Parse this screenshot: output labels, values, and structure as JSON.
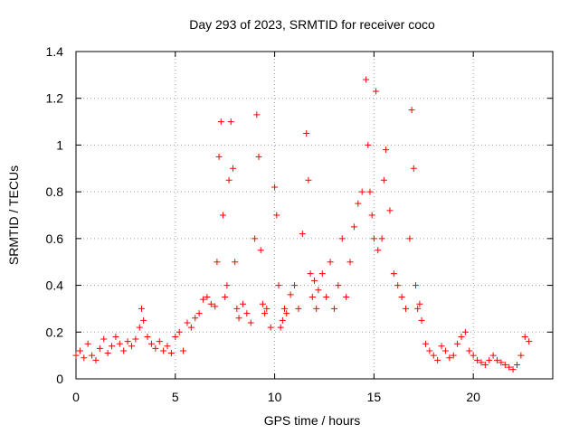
{
  "chart_data": {
    "type": "scatter",
    "title": "Day 293 of 2023, SRMTID for receiver coco",
    "xlabel": "GPS time / hours",
    "ylabel": "SRMTID / TECUs",
    "xlim": [
      0,
      24
    ],
    "ylim": [
      0,
      1.4
    ],
    "xticks": [
      0,
      5,
      10,
      15,
      20
    ],
    "xtick_labels": [
      "0",
      "5",
      "10",
      "15",
      "20"
    ],
    "yticks": [
      0,
      0.2,
      0.4,
      0.6,
      0.8,
      1,
      1.2,
      1.4
    ],
    "ytick_labels": [
      "0",
      "0.2",
      "0.4",
      "0.6",
      "0.8",
      "1",
      "1.2",
      "1.4"
    ],
    "grid": true,
    "marker": "plus",
    "color": "#ff0000",
    "series": [
      {
        "name": "SRMTID",
        "x": [
          0.0,
          0.2,
          0.4,
          0.6,
          0.8,
          1.0,
          1.2,
          1.4,
          1.6,
          1.8,
          2.0,
          2.2,
          2.4,
          2.6,
          2.8,
          3.0,
          3.2,
          3.3,
          3.4,
          3.6,
          3.8,
          4.0,
          4.2,
          4.4,
          4.6,
          4.8,
          5.0,
          5.2,
          5.4,
          5.6,
          5.8,
          6.0,
          6.2,
          6.4,
          6.6,
          6.8,
          7.0,
          7.1,
          7.2,
          7.3,
          7.4,
          7.5,
          7.6,
          7.7,
          7.8,
          7.9,
          8.0,
          8.1,
          8.2,
          8.4,
          8.6,
          8.8,
          9.0,
          9.1,
          9.2,
          9.3,
          9.4,
          9.5,
          9.6,
          9.8,
          10.0,
          10.1,
          10.2,
          10.3,
          10.4,
          10.5,
          10.6,
          10.8,
          11.0,
          11.2,
          11.4,
          11.6,
          11.7,
          11.8,
          11.9,
          12.0,
          12.1,
          12.2,
          12.4,
          12.6,
          12.8,
          13.0,
          13.2,
          13.4,
          13.6,
          13.8,
          14.0,
          14.2,
          14.4,
          14.6,
          14.7,
          14.8,
          14.9,
          15.0,
          15.1,
          15.2,
          15.4,
          15.5,
          15.6,
          15.8,
          16.0,
          16.2,
          16.4,
          16.6,
          16.8,
          16.9,
          17.0,
          17.1,
          17.2,
          17.3,
          17.4,
          17.6,
          17.8,
          18.0,
          18.2,
          18.4,
          18.6,
          18.8,
          19.0,
          19.2,
          19.4,
          19.6,
          19.8,
          20.0,
          20.2,
          20.4,
          20.6,
          20.8,
          21.0,
          21.2,
          21.4,
          21.6,
          21.8,
          22.0,
          22.2,
          22.4,
          22.6,
          22.8
        ],
        "y": [
          0.1,
          0.12,
          0.09,
          0.15,
          0.1,
          0.08,
          0.13,
          0.17,
          0.11,
          0.14,
          0.18,
          0.15,
          0.12,
          0.16,
          0.14,
          0.17,
          0.22,
          0.3,
          0.25,
          0.18,
          0.15,
          0.13,
          0.16,
          0.12,
          0.14,
          0.11,
          0.18,
          0.2,
          0.12,
          0.24,
          0.22,
          0.26,
          0.28,
          0.34,
          0.35,
          0.32,
          0.31,
          0.5,
          0.95,
          1.1,
          0.7,
          0.35,
          0.4,
          0.85,
          1.1,
          0.9,
          0.5,
          0.3,
          0.26,
          0.32,
          0.28,
          0.24,
          0.6,
          1.13,
          0.95,
          0.55,
          0.32,
          0.28,
          0.3,
          0.22,
          0.82,
          0.7,
          0.4,
          0.22,
          0.25,
          0.3,
          0.28,
          0.36,
          0.4,
          0.3,
          0.62,
          1.05,
          0.85,
          0.45,
          0.35,
          0.42,
          0.3,
          0.38,
          0.45,
          0.35,
          0.5,
          0.3,
          0.4,
          0.6,
          0.35,
          0.5,
          0.65,
          0.75,
          0.8,
          1.28,
          1.0,
          0.8,
          0.7,
          0.6,
          1.23,
          0.55,
          0.6,
          0.85,
          0.98,
          0.72,
          0.45,
          0.4,
          0.35,
          0.3,
          0.6,
          1.15,
          0.9,
          0.4,
          0.3,
          0.32,
          0.25,
          0.15,
          0.12,
          0.1,
          0.08,
          0.14,
          0.12,
          0.09,
          0.1,
          0.15,
          0.18,
          0.2,
          0.12,
          0.1,
          0.08,
          0.07,
          0.06,
          0.08,
          0.1,
          0.08,
          0.07,
          0.06,
          0.05,
          0.04,
          0.06,
          0.1,
          0.18,
          0.16
        ]
      }
    ]
  }
}
